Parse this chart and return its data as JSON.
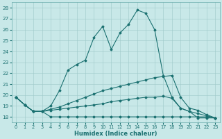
{
  "bg_color": "#c8e8e8",
  "line_color": "#1a7070",
  "xlabel": "Humidex (Indice chaleur)",
  "ylim": [
    17.5,
    28.5
  ],
  "xlim": [
    -0.5,
    23.5
  ],
  "yticks": [
    18,
    19,
    20,
    21,
    22,
    23,
    24,
    25,
    26,
    27,
    28
  ],
  "xticks": [
    0,
    1,
    2,
    3,
    4,
    5,
    6,
    7,
    8,
    9,
    10,
    11,
    12,
    13,
    14,
    15,
    16,
    17,
    18,
    19,
    20,
    21,
    22,
    23
  ],
  "series": [
    {
      "x": [
        0,
        1,
        2,
        3,
        4,
        5,
        6,
        7,
        8,
        9,
        10,
        11,
        12,
        13,
        14,
        15,
        16,
        17,
        18,
        19,
        20,
        21,
        22,
        23
      ],
      "y": [
        19.8,
        19.1,
        18.5,
        18.5,
        18.0,
        18.0,
        18.0,
        18.0,
        18.0,
        18.0,
        18.0,
        18.0,
        18.0,
        18.0,
        18.0,
        18.0,
        18.0,
        18.0,
        18.0,
        18.0,
        18.0,
        18.0,
        18.0,
        17.9
      ]
    },
    {
      "x": [
        0,
        1,
        2,
        3,
        4,
        5,
        6,
        7,
        8,
        9,
        10,
        11,
        12,
        13,
        14,
        15,
        16,
        17,
        18,
        19,
        20,
        21,
        22,
        23
      ],
      "y": [
        19.8,
        19.1,
        18.5,
        18.5,
        18.6,
        18.7,
        18.8,
        18.9,
        19.0,
        19.1,
        19.2,
        19.4,
        19.5,
        19.6,
        19.7,
        19.8,
        19.8,
        19.9,
        19.7,
        18.8,
        18.5,
        18.3,
        18.1,
        17.9
      ]
    },
    {
      "x": [
        0,
        1,
        2,
        3,
        4,
        5,
        6,
        7,
        8,
        9,
        10,
        11,
        12,
        13,
        14,
        15,
        16,
        17,
        18,
        19,
        20,
        21,
        22,
        23
      ],
      "y": [
        19.8,
        19.1,
        18.5,
        18.5,
        18.7,
        18.9,
        19.2,
        19.5,
        19.8,
        20.1,
        20.4,
        20.6,
        20.8,
        21.0,
        21.2,
        21.4,
        21.6,
        21.7,
        21.8,
        19.8,
        18.8,
        18.6,
        18.2,
        17.9
      ]
    },
    {
      "x": [
        0,
        1,
        2,
        3,
        4,
        5,
        6,
        7,
        8,
        9,
        10,
        11,
        12,
        13,
        14,
        15,
        16,
        17,
        18,
        19,
        20,
        21,
        22,
        23
      ],
      "y": [
        19.8,
        19.1,
        18.5,
        18.5,
        19.0,
        20.4,
        22.3,
        22.8,
        23.2,
        25.3,
        26.3,
        24.2,
        25.7,
        26.5,
        27.8,
        27.5,
        26.0,
        21.8,
        19.8,
        18.8,
        18.5,
        17.9,
        17.9,
        17.9
      ]
    }
  ]
}
